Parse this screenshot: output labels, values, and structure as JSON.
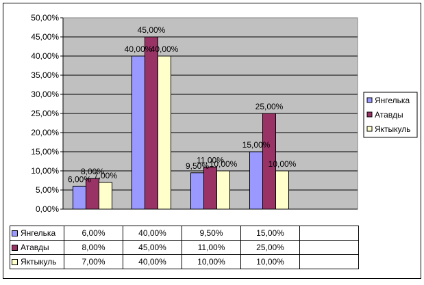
{
  "chart_data": {
    "type": "bar",
    "categories": [
      "",
      "",
      "",
      "",
      ""
    ],
    "series": [
      {
        "name": "Янгелька",
        "color": "#9999ff",
        "values": [
          6,
          40,
          9.5,
          15,
          null
        ]
      },
      {
        "name": "Атавды",
        "color": "#993366",
        "values": [
          8,
          45,
          11,
          25,
          null
        ]
      },
      {
        "name": "Яктыкуль",
        "color": "#ffffcc",
        "values": [
          7,
          40,
          10,
          10,
          null
        ]
      }
    ],
    "data_labels": [
      [
        "6,00%",
        "40,00%",
        "9,50%",
        "15,00%",
        ""
      ],
      [
        "8,00%",
        "45,00%",
        "11,00%",
        "25,00%",
        ""
      ],
      [
        "7,00%",
        "40,00%",
        "10,00%",
        "10,00%",
        ""
      ]
    ],
    "ylim": [
      0,
      50
    ],
    "yticks": [
      "0,00%",
      "5,00%",
      "10,00%",
      "15,00%",
      "20,00%",
      "25,00%",
      "30,00%",
      "35,00%",
      "40,00%",
      "45,00%",
      "50,00%"
    ],
    "plot_background": "#c0c0c0",
    "grid": true,
    "legend": "right",
    "data_table": true
  }
}
